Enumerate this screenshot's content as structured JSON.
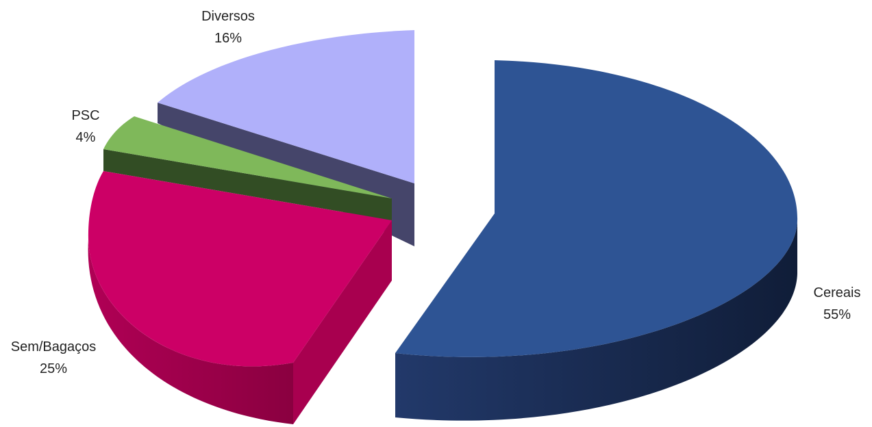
{
  "chart_data": {
    "type": "pie",
    "style": "3d-exploded",
    "slices": [
      {
        "name": "Cereais",
        "value": 55,
        "label": "55%",
        "color": "#2e5494",
        "side_color": "#16284a"
      },
      {
        "name": "Sem/Bagaços",
        "value": 25,
        "label": "25%",
        "color": "#cc0066",
        "side_color": "#930045"
      },
      {
        "name": "PSC",
        "value": 4,
        "label": "4%",
        "color": "#7fb85a",
        "side_color": "#324d24"
      },
      {
        "name": "Diversos",
        "value": 16,
        "label": "16%",
        "color": "#b0b0fa",
        "side_color": "#45456a"
      }
    ],
    "legend": "none"
  }
}
